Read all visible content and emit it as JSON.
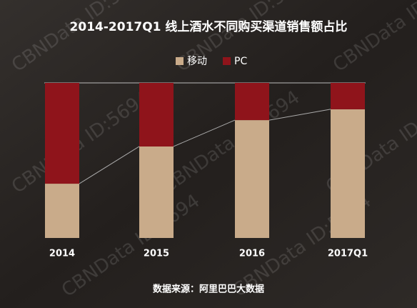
{
  "chart_data": {
    "type": "stacked_bar",
    "title": "2014-2017Q1 线上酒水不同购买渠道销售额占比",
    "categories": [
      "2014",
      "2015",
      "2016",
      "2017Q1"
    ],
    "series": [
      {
        "name": "移动",
        "color": "#c9ab8a",
        "values": [
          35,
          59,
          76,
          83
        ]
      },
      {
        "name": "PC",
        "color": "#8f141b",
        "values": [
          65,
          41,
          24,
          17
        ]
      }
    ],
    "ylim": [
      0,
      100
    ],
    "source": "数据来源：阿里巴巴大数据",
    "watermark": "CBNData ID:5694"
  }
}
